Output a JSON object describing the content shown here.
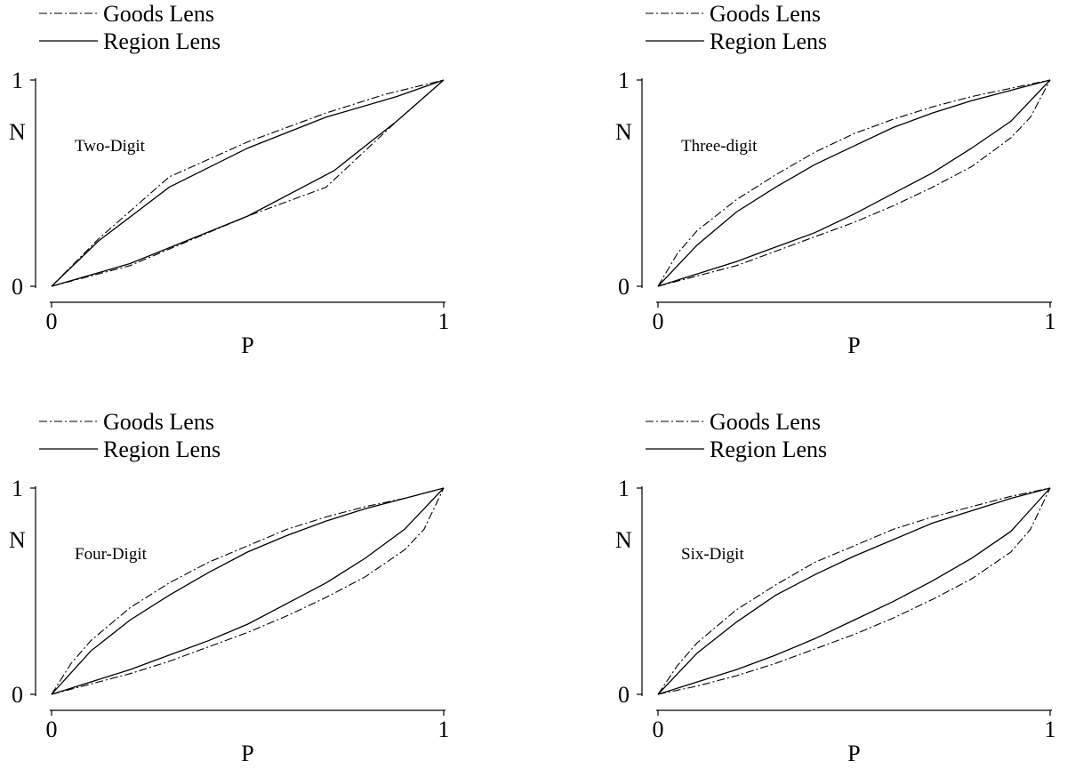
{
  "chart_data": [
    {
      "type": "line",
      "title": "Two-Digit",
      "xlabel": "P",
      "ylabel": "N",
      "xlim": [
        0,
        1
      ],
      "ylim": [
        0,
        1
      ],
      "x_ticks": [
        "0",
        "1"
      ],
      "y_ticks": [
        "0",
        "1"
      ],
      "legend": {
        "placement": "top-left",
        "entries": [
          "Goods Lens",
          "Region Lens"
        ]
      },
      "grid": false,
      "series": [
        {
          "name": "Goods Lens",
          "style": "dash-dot",
          "upper": true,
          "x": [
            0,
            0.12,
            0.3,
            0.5,
            0.7,
            0.85,
            1
          ],
          "y": [
            0,
            0.23,
            0.53,
            0.7,
            0.84,
            0.93,
            1
          ]
        },
        {
          "name": "Goods Lens",
          "style": "dash-dot",
          "upper": false,
          "x": [
            0,
            0.2,
            0.5,
            0.7,
            0.88,
            1
          ],
          "y": [
            0,
            0.1,
            0.34,
            0.48,
            0.8,
            1
          ]
        },
        {
          "name": "Region Lens",
          "style": "solid",
          "upper": true,
          "x": [
            0,
            0.12,
            0.3,
            0.5,
            0.7,
            0.88,
            1
          ],
          "y": [
            0,
            0.22,
            0.48,
            0.67,
            0.82,
            0.92,
            1
          ]
        },
        {
          "name": "Region Lens",
          "style": "solid",
          "upper": false,
          "x": [
            0,
            0.2,
            0.5,
            0.72,
            0.88,
            1
          ],
          "y": [
            0,
            0.11,
            0.34,
            0.56,
            0.8,
            1
          ]
        }
      ]
    },
    {
      "type": "line",
      "title": "Three-digit",
      "xlabel": "P",
      "ylabel": "N",
      "xlim": [
        0,
        1
      ],
      "ylim": [
        0,
        1
      ],
      "x_ticks": [
        "0",
        "1"
      ],
      "y_ticks": [
        "0",
        "1"
      ],
      "legend": {
        "placement": "top-left",
        "entries": [
          "Goods Lens",
          "Region Lens"
        ]
      },
      "grid": false,
      "series": [
        {
          "name": "Goods Lens",
          "style": "dash-dot",
          "upper": true,
          "x": [
            0,
            0.05,
            0.1,
            0.2,
            0.3,
            0.4,
            0.5,
            0.6,
            0.7,
            0.8,
            0.9,
            1
          ],
          "y": [
            0,
            0.16,
            0.27,
            0.42,
            0.54,
            0.65,
            0.74,
            0.81,
            0.87,
            0.92,
            0.96,
            1
          ]
        },
        {
          "name": "Goods Lens",
          "style": "dash-dot",
          "upper": false,
          "x": [
            0,
            0.1,
            0.2,
            0.3,
            0.4,
            0.5,
            0.6,
            0.7,
            0.8,
            0.9,
            0.95,
            1
          ],
          "y": [
            0,
            0.05,
            0.1,
            0.17,
            0.24,
            0.31,
            0.39,
            0.48,
            0.58,
            0.72,
            0.82,
            1
          ]
        },
        {
          "name": "Region Lens",
          "style": "solid",
          "upper": true,
          "x": [
            0,
            0.1,
            0.2,
            0.3,
            0.4,
            0.5,
            0.6,
            0.7,
            0.8,
            0.9,
            1
          ],
          "y": [
            0,
            0.2,
            0.36,
            0.48,
            0.59,
            0.68,
            0.77,
            0.84,
            0.9,
            0.95,
            1
          ]
        },
        {
          "name": "Region Lens",
          "style": "solid",
          "upper": false,
          "x": [
            0,
            0.1,
            0.2,
            0.3,
            0.4,
            0.5,
            0.6,
            0.7,
            0.8,
            0.9,
            1
          ],
          "y": [
            0,
            0.06,
            0.12,
            0.19,
            0.26,
            0.35,
            0.45,
            0.55,
            0.67,
            0.8,
            1
          ]
        }
      ]
    },
    {
      "type": "line",
      "title": "Four-Digit",
      "xlabel": "P",
      "ylabel": "N",
      "xlim": [
        0,
        1
      ],
      "ylim": [
        0,
        1
      ],
      "x_ticks": [
        "0",
        "1"
      ],
      "y_ticks": [
        "0",
        "1"
      ],
      "legend": {
        "placement": "top-left",
        "entries": [
          "Goods Lens",
          "Region Lens"
        ]
      },
      "grid": false,
      "series": [
        {
          "name": "Goods Lens",
          "style": "dash-dot",
          "upper": true,
          "x": [
            0,
            0.05,
            0.1,
            0.2,
            0.3,
            0.4,
            0.5,
            0.6,
            0.7,
            0.8,
            0.9,
            1
          ],
          "y": [
            0,
            0.15,
            0.26,
            0.42,
            0.54,
            0.64,
            0.72,
            0.8,
            0.86,
            0.91,
            0.95,
            1
          ]
        },
        {
          "name": "Goods Lens",
          "style": "dash-dot",
          "upper": false,
          "x": [
            0,
            0.1,
            0.2,
            0.3,
            0.4,
            0.5,
            0.6,
            0.7,
            0.8,
            0.9,
            0.95,
            1
          ],
          "y": [
            0,
            0.05,
            0.1,
            0.16,
            0.23,
            0.3,
            0.38,
            0.47,
            0.57,
            0.7,
            0.8,
            1
          ]
        },
        {
          "name": "Region Lens",
          "style": "solid",
          "upper": true,
          "x": [
            0,
            0.1,
            0.2,
            0.3,
            0.4,
            0.5,
            0.6,
            0.7,
            0.8,
            0.9,
            1
          ],
          "y": [
            0,
            0.21,
            0.36,
            0.48,
            0.59,
            0.69,
            0.77,
            0.84,
            0.9,
            0.95,
            1
          ]
        },
        {
          "name": "Region Lens",
          "style": "solid",
          "upper": false,
          "x": [
            0,
            0.1,
            0.2,
            0.3,
            0.4,
            0.5,
            0.6,
            0.7,
            0.8,
            0.9,
            1
          ],
          "y": [
            0,
            0.06,
            0.12,
            0.19,
            0.26,
            0.34,
            0.44,
            0.54,
            0.66,
            0.8,
            1
          ]
        }
      ]
    },
    {
      "type": "line",
      "title": "Six-Digit",
      "xlabel": "P",
      "ylabel": "N",
      "xlim": [
        0,
        1
      ],
      "ylim": [
        0,
        1
      ],
      "x_ticks": [
        "0",
        "1"
      ],
      "y_ticks": [
        "0",
        "1"
      ],
      "legend": {
        "placement": "top-left",
        "entries": [
          "Goods Lens",
          "Region Lens"
        ]
      },
      "grid": false,
      "series": [
        {
          "name": "Goods Lens",
          "style": "dash-dot",
          "upper": true,
          "x": [
            0,
            0.05,
            0.1,
            0.2,
            0.3,
            0.4,
            0.5,
            0.6,
            0.7,
            0.8,
            0.9,
            1
          ],
          "y": [
            0,
            0.14,
            0.25,
            0.41,
            0.53,
            0.64,
            0.72,
            0.8,
            0.86,
            0.91,
            0.96,
            1
          ]
        },
        {
          "name": "Goods Lens",
          "style": "dash-dot",
          "upper": false,
          "x": [
            0,
            0.1,
            0.2,
            0.3,
            0.4,
            0.5,
            0.6,
            0.7,
            0.8,
            0.9,
            0.95,
            1
          ],
          "y": [
            0,
            0.04,
            0.09,
            0.15,
            0.22,
            0.29,
            0.37,
            0.46,
            0.56,
            0.69,
            0.8,
            1
          ]
        },
        {
          "name": "Region Lens",
          "style": "solid",
          "upper": true,
          "x": [
            0,
            0.1,
            0.2,
            0.3,
            0.4,
            0.5,
            0.6,
            0.7,
            0.8,
            0.9,
            1
          ],
          "y": [
            0,
            0.2,
            0.35,
            0.48,
            0.58,
            0.67,
            0.75,
            0.83,
            0.89,
            0.95,
            1
          ]
        },
        {
          "name": "Region Lens",
          "style": "solid",
          "upper": false,
          "x": [
            0,
            0.1,
            0.2,
            0.3,
            0.4,
            0.5,
            0.6,
            0.7,
            0.8,
            0.9,
            1
          ],
          "y": [
            0,
            0.06,
            0.12,
            0.19,
            0.27,
            0.36,
            0.45,
            0.55,
            0.66,
            0.79,
            1
          ]
        }
      ]
    }
  ]
}
